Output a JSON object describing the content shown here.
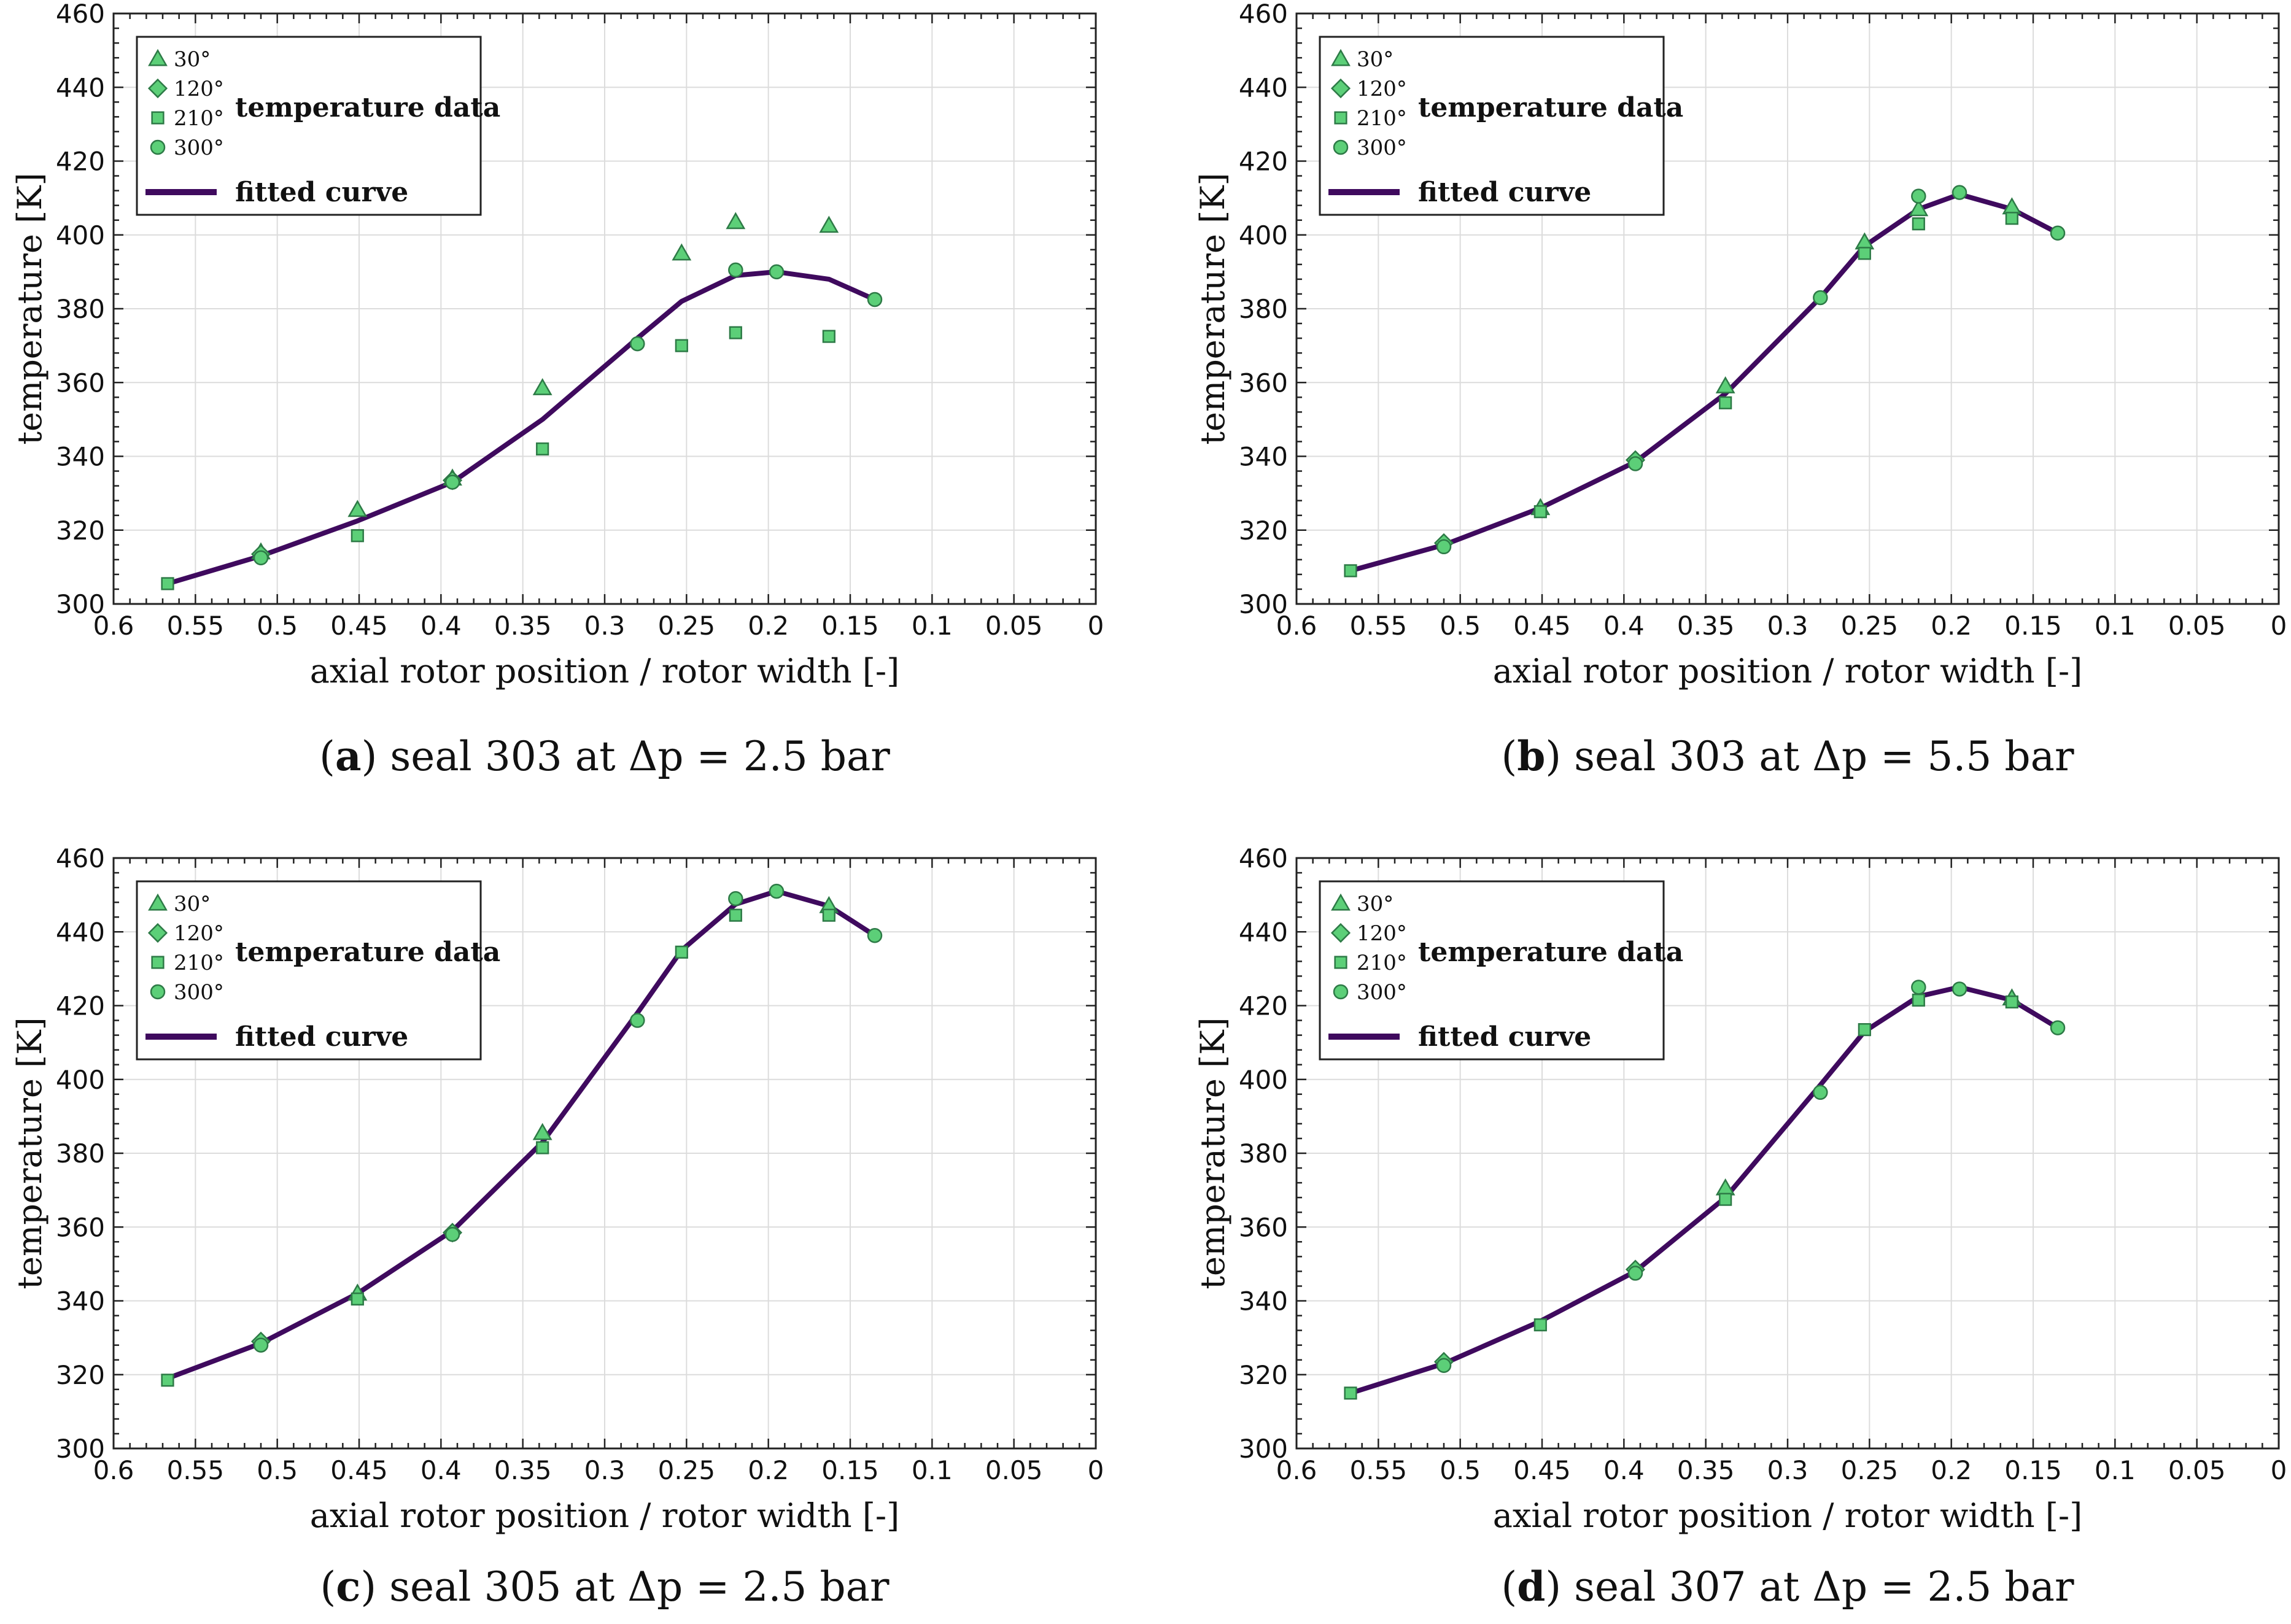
{
  "colors": {
    "curve": "#3f0a5e",
    "marker_fill": "#5ccf78",
    "marker_edge": "#2d7a46",
    "grid": "#dcdcdc",
    "axis": "#222222"
  },
  "chart_data": [
    {
      "type": "line",
      "caption_letter": "a",
      "caption_text": "seal 303 at Δp = 2.5 bar",
      "xlabel": "axial rotor position / rotor width [-]",
      "ylabel": "temperature [K]",
      "xlim": [
        0.6,
        0
      ],
      "ylim": [
        300,
        460
      ],
      "xticks": [
        "0.6",
        "0.55",
        "0.5",
        "0.45",
        "0.4",
        "0.35",
        "0.3",
        "0.25",
        "0.2",
        "0.15",
        "0.1",
        "0.05",
        "0"
      ],
      "yticks": [
        "300",
        "320",
        "340",
        "360",
        "380",
        "400",
        "420",
        "440",
        "460"
      ],
      "legend": {
        "entries": [
          "30°",
          "120°",
          "210°",
          "300°"
        ],
        "data_label": "temperature data",
        "curve_label": "fitted curve"
      },
      "series": [
        {
          "name": "30°",
          "marker": "triangle",
          "x": [
            0.51,
            0.451,
            0.393,
            0.338,
            0.253,
            0.22,
            0.163
          ],
          "y": [
            314,
            325.5,
            334,
            358.5,
            395,
            403.5,
            402.5
          ]
        },
        {
          "name": "120°",
          "marker": "diamond",
          "x": [
            0.51,
            0.393
          ],
          "y": [
            313.5,
            333.5
          ]
        },
        {
          "name": "210°",
          "marker": "square",
          "x": [
            0.567,
            0.451,
            0.338,
            0.253,
            0.22,
            0.163
          ],
          "y": [
            305.5,
            318.5,
            342,
            370,
            373.5,
            372.5
          ]
        },
        {
          "name": "300°",
          "marker": "circle",
          "x": [
            0.51,
            0.393,
            0.28,
            0.22,
            0.195,
            0.135
          ],
          "y": [
            312.5,
            333,
            370.5,
            390.5,
            390,
            382.5
          ]
        }
      ],
      "fitted_curve": {
        "name": "fitted curve",
        "x": [
          0.567,
          0.51,
          0.451,
          0.393,
          0.338,
          0.28,
          0.253,
          0.22,
          0.195,
          0.163,
          0.135
        ],
        "y": [
          305.5,
          313,
          322.5,
          333,
          350,
          372,
          382,
          389,
          390,
          388,
          382.5
        ]
      }
    },
    {
      "type": "line",
      "caption_letter": "b",
      "caption_text": "seal 303 at Δp = 5.5 bar",
      "xlabel": "axial rotor position / rotor width [-]",
      "ylabel": "temperature [K]",
      "xlim": [
        0.6,
        0
      ],
      "ylim": [
        300,
        460
      ],
      "xticks": [
        "0.6",
        "0.55",
        "0.5",
        "0.45",
        "0.4",
        "0.35",
        "0.3",
        "0.25",
        "0.2",
        "0.15",
        "0.1",
        "0.05",
        "0"
      ],
      "yticks": [
        "300",
        "320",
        "340",
        "360",
        "380",
        "400",
        "420",
        "440",
        "460"
      ],
      "legend": {
        "entries": [
          "30°",
          "120°",
          "210°",
          "300°"
        ],
        "data_label": "temperature data",
        "curve_label": "fitted curve"
      },
      "series": [
        {
          "name": "30°",
          "marker": "triangle",
          "x": [
            0.451,
            0.338,
            0.253,
            0.22,
            0.163
          ],
          "y": [
            326,
            359,
            398,
            407,
            407.5
          ]
        },
        {
          "name": "120°",
          "marker": "diamond",
          "x": [
            0.51,
            0.393
          ],
          "y": [
            316.5,
            339
          ]
        },
        {
          "name": "210°",
          "marker": "square",
          "x": [
            0.567,
            0.451,
            0.338,
            0.253,
            0.22,
            0.163
          ],
          "y": [
            309,
            325,
            354.5,
            395,
            403,
            404.5
          ]
        },
        {
          "name": "300°",
          "marker": "circle",
          "x": [
            0.51,
            0.393,
            0.28,
            0.22,
            0.195,
            0.135
          ],
          "y": [
            315.5,
            338,
            383,
            410.5,
            411.5,
            400.5
          ]
        }
      ],
      "fitted_curve": {
        "name": "fitted curve",
        "x": [
          0.567,
          0.51,
          0.451,
          0.393,
          0.338,
          0.28,
          0.253,
          0.22,
          0.195,
          0.163,
          0.135
        ],
        "y": [
          309,
          316,
          326,
          338.5,
          357,
          383,
          397,
          407,
          411,
          407,
          400.5
        ]
      }
    },
    {
      "type": "line",
      "caption_letter": "c",
      "caption_text": "seal 305 at Δp = 2.5 bar",
      "xlabel": "axial rotor position / rotor width [-]",
      "ylabel": "temperature [K]",
      "xlim": [
        0.6,
        0
      ],
      "ylim": [
        300,
        460
      ],
      "xticks": [
        "0.6",
        "0.55",
        "0.5",
        "0.45",
        "0.4",
        "0.35",
        "0.3",
        "0.25",
        "0.2",
        "0.15",
        "0.1",
        "0.05",
        "0"
      ],
      "yticks": [
        "300",
        "320",
        "340",
        "360",
        "380",
        "400",
        "420",
        "440",
        "460"
      ],
      "legend": {
        "entries": [
          "30°",
          "120°",
          "210°",
          "300°"
        ],
        "data_label": "temperature data",
        "curve_label": "fitted curve"
      },
      "series": [
        {
          "name": "30°",
          "marker": "triangle",
          "x": [
            0.451,
            0.338,
            0.163
          ],
          "y": [
            342,
            385.5,
            447
          ]
        },
        {
          "name": "120°",
          "marker": "diamond",
          "x": [
            0.51,
            0.393
          ],
          "y": [
            329,
            358.5
          ]
        },
        {
          "name": "210°",
          "marker": "square",
          "x": [
            0.567,
            0.451,
            0.338,
            0.253,
            0.22,
            0.163
          ],
          "y": [
            318.5,
            340.5,
            381.5,
            434.5,
            444.5,
            444.5
          ]
        },
        {
          "name": "300°",
          "marker": "circle",
          "x": [
            0.51,
            0.393,
            0.28,
            0.22,
            0.195,
            0.135
          ],
          "y": [
            328,
            358,
            416,
            449,
            451,
            439
          ]
        }
      ],
      "fitted_curve": {
        "name": "fitted curve",
        "x": [
          0.567,
          0.51,
          0.451,
          0.393,
          0.338,
          0.28,
          0.253,
          0.22,
          0.195,
          0.163,
          0.135
        ],
        "y": [
          319,
          328.5,
          342,
          359,
          383,
          418,
          435,
          447.5,
          451,
          447,
          439
        ]
      }
    },
    {
      "type": "line",
      "caption_letter": "d",
      "caption_text": "seal 307 at Δp = 2.5 bar",
      "xlabel": "axial rotor position / rotor width [-]",
      "ylabel": "temperature [K]",
      "xlim": [
        0.6,
        0
      ],
      "ylim": [
        300,
        460
      ],
      "xticks": [
        "0.6",
        "0.55",
        "0.5",
        "0.45",
        "0.4",
        "0.35",
        "0.3",
        "0.25",
        "0.2",
        "0.15",
        "0.1",
        "0.05",
        "0"
      ],
      "yticks": [
        "300",
        "320",
        "340",
        "360",
        "380",
        "400",
        "420",
        "440",
        "460"
      ],
      "legend": {
        "entries": [
          "30°",
          "120°",
          "210°",
          "300°"
        ],
        "data_label": "temperature data",
        "curve_label": "fitted curve"
      },
      "series": [
        {
          "name": "30°",
          "marker": "triangle",
          "x": [
            0.338,
            0.163
          ],
          "y": [
            370.5,
            422
          ]
        },
        {
          "name": "120°",
          "marker": "diamond",
          "x": [
            0.51,
            0.393
          ],
          "y": [
            323.5,
            348.5
          ]
        },
        {
          "name": "210°",
          "marker": "square",
          "x": [
            0.567,
            0.451,
            0.338,
            0.253,
            0.22,
            0.163
          ],
          "y": [
            315,
            333.5,
            367.5,
            413.5,
            421.5,
            421
          ]
        },
        {
          "name": "300°",
          "marker": "circle",
          "x": [
            0.51,
            0.393,
            0.28,
            0.22,
            0.195,
            0.135
          ],
          "y": [
            322.5,
            347.5,
            396.5,
            425,
            424.5,
            414
          ]
        }
      ],
      "fitted_curve": {
        "name": "fitted curve",
        "x": [
          0.567,
          0.51,
          0.451,
          0.393,
          0.338,
          0.28,
          0.253,
          0.22,
          0.195,
          0.163,
          0.135
        ],
        "y": [
          315,
          323,
          334.5,
          348,
          368,
          398.5,
          413,
          422.5,
          425,
          421.5,
          414
        ]
      }
    }
  ]
}
